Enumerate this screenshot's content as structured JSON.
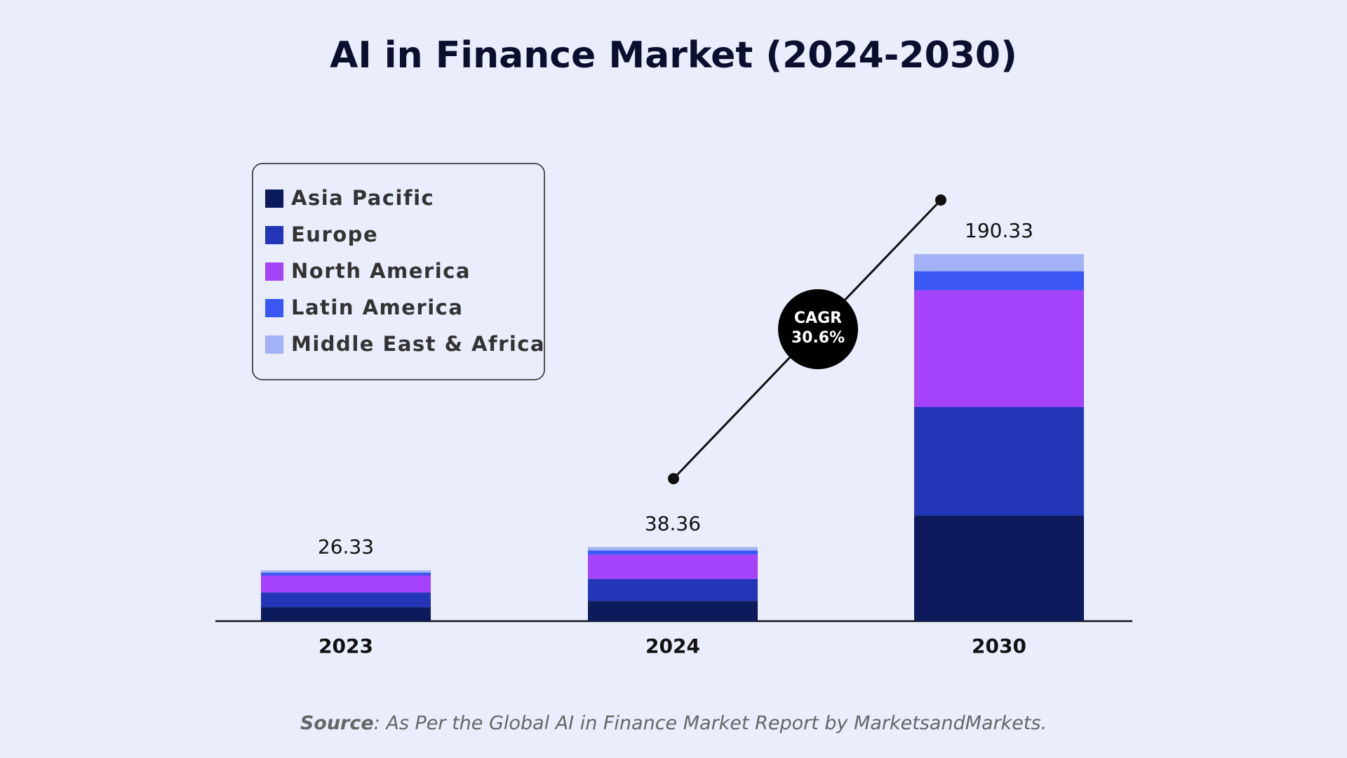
{
  "chart_data": {
    "type": "stacked-bar",
    "title": "AI in Finance Market (2024-2030)",
    "categories": [
      "2023",
      "2024",
      "2030"
    ],
    "series": [
      {
        "name": "Asia Pacific",
        "color": "#0d1a5c",
        "values": [
          7.25,
          10.5,
          54.8
        ]
      },
      {
        "name": "Europe",
        "color": "#2336b8",
        "values": [
          7.63,
          11.4,
          56.2
        ]
      },
      {
        "name": "North America",
        "color": "#a543fa",
        "values": [
          8.78,
          12.6,
          60.6
        ]
      },
      {
        "name": "Latin America",
        "color": "#3a57f5",
        "values": [
          1.53,
          2.1,
          9.8
        ]
      },
      {
        "name": "Middle East & Africa",
        "color": "#a3b1f7",
        "values": [
          1.14,
          1.76,
          8.9
        ]
      }
    ],
    "totals": [
      26.33,
      38.36,
      190.33
    ],
    "annotation": {
      "label": "CAGR",
      "value": "30.6%"
    },
    "source_label": "Source",
    "source_text": ": As Per the Global AI in Finance Market Report by MarketsandMarkets.",
    "legend": "upper left"
  }
}
